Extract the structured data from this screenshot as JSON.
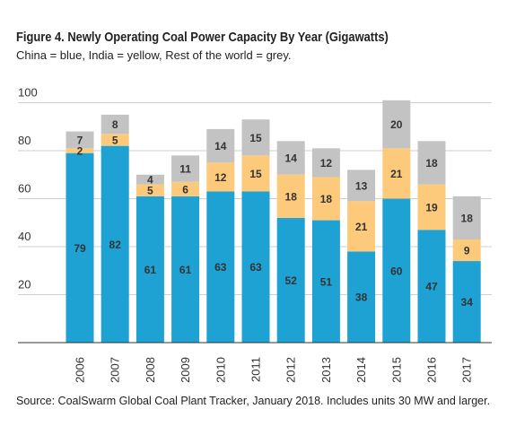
{
  "title": "Figure 4. Newly Operating Coal Power Capacity By Year (Gigawatts)",
  "subtitle": "China = blue, India = yellow, Rest of the world = grey.",
  "source": "Source: CoalSwarm Global Coal Plant Tracker, January 2018. Includes units 30 MW and larger.",
  "colors": {
    "china": "#1ea1d3",
    "india": "#fcca7a",
    "rest": "#c3c3c3",
    "grid": "#cfcfcf"
  },
  "chart_data": {
    "type": "bar",
    "stacked": true,
    "categories": [
      "2006",
      "2007",
      "2008",
      "2009",
      "2010",
      "2011",
      "2012",
      "2013",
      "2014",
      "2015",
      "2016",
      "2017"
    ],
    "series": [
      {
        "key": "china",
        "values": [
          79,
          82,
          61,
          61,
          63,
          63,
          52,
          51,
          38,
          60,
          47,
          34
        ]
      },
      {
        "key": "india",
        "values": [
          2,
          5,
          5,
          6,
          12,
          15,
          18,
          18,
          21,
          21,
          19,
          9
        ]
      },
      {
        "key": "rest",
        "values": [
          7,
          8,
          4,
          11,
          14,
          15,
          14,
          12,
          13,
          20,
          18,
          18
        ]
      }
    ],
    "yticks": [
      20,
      40,
      60,
      80,
      100
    ],
    "ylim": [
      0,
      103
    ],
    "grid": true
  }
}
